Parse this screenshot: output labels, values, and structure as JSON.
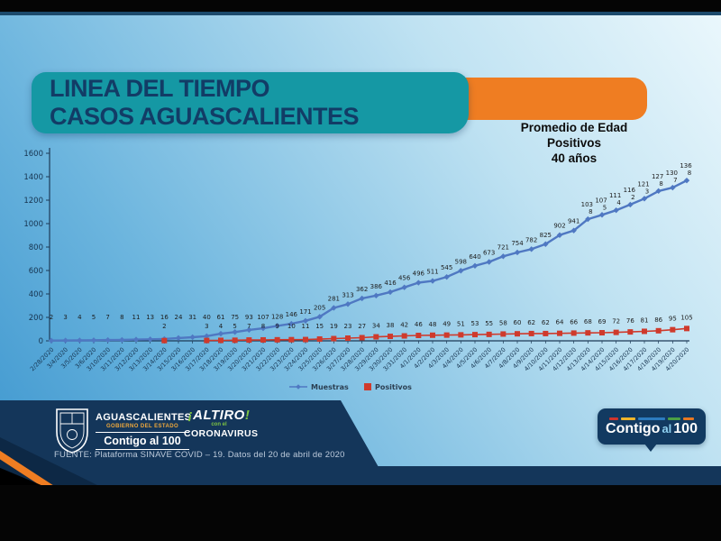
{
  "title": {
    "line1": "LINEA DEL TIEMPO",
    "line2": "CASOS AGUASCALIENTES"
  },
  "annotation": {
    "line1": "Promedio de Edad",
    "line2": "Positivos",
    "line3": "40 años"
  },
  "chart_data": {
    "type": "line",
    "x": [
      "2/28/2020",
      "3/4/2020",
      "3/5/2020",
      "3/6/2020",
      "3/10/2020",
      "3/11/2020",
      "3/12/2020",
      "3/13/2020",
      "3/14/2020",
      "3/15/2020",
      "3/16/2020",
      "3/17/2020",
      "3/18/2020",
      "3/19/2020",
      "3/20/2020",
      "3/21/2020",
      "3/22/2020",
      "3/23/2020",
      "3/24/2020",
      "3/25/2020",
      "3/26/2020",
      "3/27/2020",
      "3/28/2020",
      "3/29/2020",
      "3/30/2020",
      "3/31/2020",
      "4/1/2020",
      "4/2/2020",
      "4/3/2020",
      "4/4/2020",
      "4/5/2020",
      "4/6/2020",
      "4/7/2020",
      "4/8/2020",
      "4/9/2020",
      "4/10/2020",
      "4/11/2020",
      "4/12/2020",
      "4/13/2020",
      "4/14/2020",
      "4/15/2020",
      "4/16/2020",
      "4/17/2020",
      "4/18/2020",
      "4/19/2020",
      "4/20/2020"
    ],
    "series": [
      {
        "name": "Muestras",
        "color": "#4f78c2",
        "marker": "diamond",
        "values": [
          2,
          3,
          4,
          5,
          7,
          8,
          11,
          13,
          16,
          24,
          31,
          40,
          61,
          75,
          93,
          107,
          128,
          146,
          171,
          205,
          281,
          313,
          362,
          386,
          416,
          456,
          496,
          511,
          545,
          598,
          640,
          673,
          721,
          754,
          782,
          825,
          902,
          941,
          1038,
          1075,
          1114,
          1162,
          1213,
          1278,
          1307,
          1368
        ]
      },
      {
        "name": "Positivos",
        "color": "#cf3a2c",
        "marker": "square",
        "values": [
          null,
          null,
          null,
          null,
          null,
          null,
          null,
          null,
          2,
          null,
          null,
          3,
          4,
          5,
          7,
          8,
          9,
          10,
          11,
          15,
          19,
          23,
          27,
          34,
          38,
          42,
          46,
          48,
          49,
          51,
          53,
          55,
          58,
          60,
          62,
          62,
          64,
          66,
          68,
          69,
          72,
          76,
          81,
          86,
          95,
          105
        ]
      }
    ],
    "ylim": [
      0,
      1600
    ],
    "yticks": [
      0,
      200,
      400,
      600,
      800,
      1000,
      1200,
      1400,
      1600
    ],
    "grid": false,
    "legend_position": "bottom",
    "label_color": "#1c1c1c"
  },
  "footer": {
    "gov_logo": {
      "name": "AGUASCALIENTES",
      "subtitle": "GOBIERNO DEL ESTADO",
      "slogan": "Contigo al 100"
    },
    "altiro": {
      "excl_open": "¡",
      "title": "ALTIRO",
      "sub": "con el",
      "bottom": "CORONAVIRUS",
      "excl_close": "!"
    },
    "source": "FUENTE: Plataforma SINAVE COVID – 19. Datos del 20 de abril de 2020",
    "badge": {
      "word1": "Contigo",
      "word2": "al",
      "word3": "100"
    }
  },
  "colors": {
    "banner_teal": "#1598a4",
    "accent_orange": "#ef7d22",
    "footer_navy": "#14365a",
    "title_text": "#123c66",
    "muestras_blue": "#4f78c2",
    "positivos_red": "#cf3a2c",
    "axis": "#1d3a57",
    "badge_dashes": [
      "#d0342c",
      "#efb52a",
      "#2c7bbf",
      "#4ba045",
      "#e87722"
    ]
  }
}
